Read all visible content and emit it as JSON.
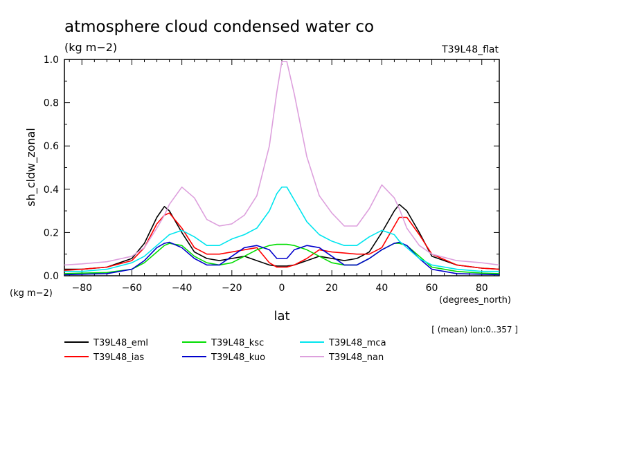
{
  "header": {
    "title": "atmosphere cloud condensed water co",
    "units": "(kg m−2)",
    "run": "T39L48_flat"
  },
  "axes": {
    "ylabel": "sh_cldw_zonal",
    "xlabel": "lat",
    "yunits": "(kg m−2)",
    "xunits": "(degrees_north)",
    "note": "[ (mean) lon:0..357 ]"
  },
  "chart_data": {
    "type": "line",
    "title": "atmosphere cloud condensed water co",
    "xlabel": "lat",
    "ylabel": "sh_cldw_zonal",
    "xlim": [
      -87,
      87
    ],
    "ylim": [
      0,
      1.0
    ],
    "xticks": [
      -80,
      -60,
      -40,
      -20,
      0,
      20,
      40,
      60,
      80
    ],
    "yticks": [
      0.0,
      0.2,
      0.4,
      0.6,
      0.8,
      1.0
    ],
    "ytick_labels": [
      "0.0",
      "0.2",
      "0.4",
      "0.6",
      "0.8",
      "1.0"
    ],
    "x": [
      -87,
      -80,
      -70,
      -60,
      -55,
      -50,
      -47,
      -45,
      -40,
      -35,
      -30,
      -25,
      -20,
      -15,
      -10,
      -5,
      -2,
      0,
      2,
      5,
      10,
      15,
      20,
      25,
      30,
      35,
      40,
      45,
      47,
      50,
      55,
      60,
      70,
      80,
      87
    ],
    "legend_position": "bottom",
    "series": [
      {
        "name": "T39L48_eml",
        "color": "#000000",
        "values": [
          0.03,
          0.03,
          0.04,
          0.08,
          0.15,
          0.27,
          0.32,
          0.3,
          0.2,
          0.11,
          0.08,
          0.07,
          0.08,
          0.09,
          0.07,
          0.05,
          0.045,
          0.045,
          0.045,
          0.05,
          0.07,
          0.09,
          0.08,
          0.07,
          0.08,
          0.11,
          0.2,
          0.3,
          0.33,
          0.3,
          0.2,
          0.09,
          0.05,
          0.035,
          0.03
        ]
      },
      {
        "name": "T39L48_ias",
        "color": "#ff0000",
        "values": [
          0.025,
          0.03,
          0.04,
          0.07,
          0.13,
          0.24,
          0.28,
          0.29,
          0.22,
          0.13,
          0.1,
          0.1,
          0.11,
          0.12,
          0.13,
          0.06,
          0.04,
          0.04,
          0.04,
          0.05,
          0.08,
          0.12,
          0.11,
          0.105,
          0.1,
          0.1,
          0.13,
          0.23,
          0.27,
          0.27,
          0.19,
          0.1,
          0.05,
          0.035,
          0.03
        ]
      },
      {
        "name": "T39L48_ksc",
        "color": "#00dd00",
        "values": [
          0.01,
          0.012,
          0.015,
          0.03,
          0.06,
          0.11,
          0.14,
          0.15,
          0.14,
          0.09,
          0.06,
          0.05,
          0.06,
          0.09,
          0.12,
          0.14,
          0.145,
          0.145,
          0.145,
          0.14,
          0.12,
          0.09,
          0.06,
          0.05,
          0.05,
          0.08,
          0.12,
          0.15,
          0.15,
          0.14,
          0.09,
          0.04,
          0.02,
          0.012,
          0.01
        ]
      },
      {
        "name": "T39L48_kuo",
        "color": "#0000cc",
        "values": [
          0.005,
          0.007,
          0.01,
          0.03,
          0.07,
          0.13,
          0.15,
          0.155,
          0.13,
          0.08,
          0.05,
          0.05,
          0.09,
          0.13,
          0.14,
          0.12,
          0.08,
          0.08,
          0.08,
          0.12,
          0.14,
          0.13,
          0.09,
          0.05,
          0.05,
          0.08,
          0.12,
          0.15,
          0.155,
          0.14,
          0.08,
          0.03,
          0.01,
          0.007,
          0.005
        ]
      },
      {
        "name": "T39L48_mca",
        "color": "#00e5ee",
        "values": [
          0.02,
          0.02,
          0.03,
          0.06,
          0.09,
          0.14,
          0.17,
          0.19,
          0.21,
          0.18,
          0.14,
          0.14,
          0.17,
          0.19,
          0.22,
          0.3,
          0.38,
          0.41,
          0.41,
          0.35,
          0.25,
          0.19,
          0.16,
          0.14,
          0.14,
          0.18,
          0.21,
          0.19,
          0.16,
          0.13,
          0.08,
          0.05,
          0.03,
          0.02,
          0.02
        ]
      },
      {
        "name": "T39L48_nan",
        "color": "#dda0dd",
        "values": [
          0.05,
          0.055,
          0.065,
          0.09,
          0.13,
          0.22,
          0.28,
          0.33,
          0.41,
          0.36,
          0.26,
          0.23,
          0.24,
          0.28,
          0.37,
          0.6,
          0.85,
          0.99,
          0.99,
          0.84,
          0.55,
          0.37,
          0.29,
          0.23,
          0.23,
          0.31,
          0.42,
          0.36,
          0.31,
          0.22,
          0.14,
          0.1,
          0.07,
          0.06,
          0.05
        ]
      }
    ]
  }
}
